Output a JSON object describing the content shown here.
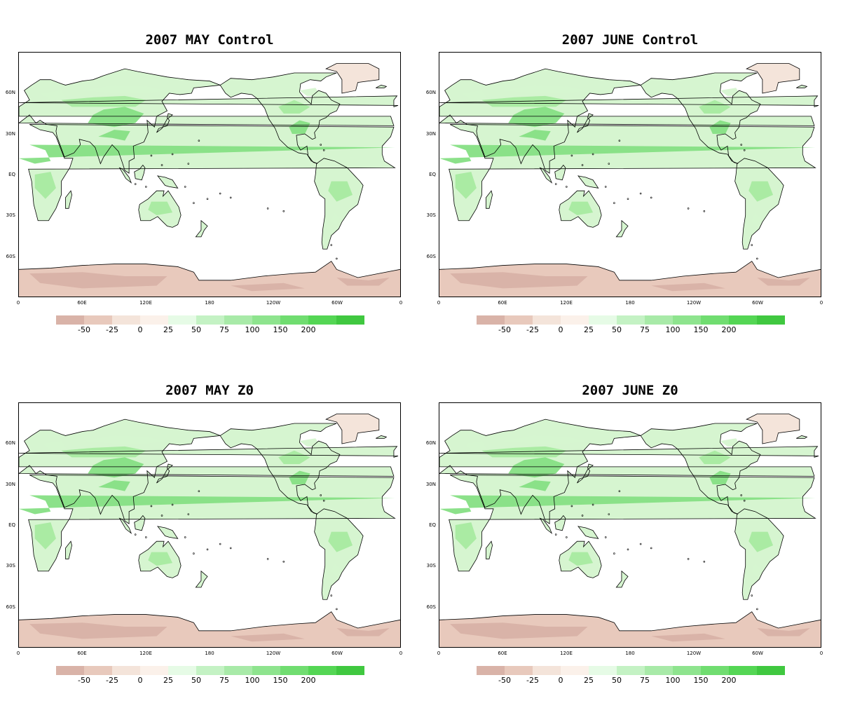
{
  "panels": [
    {
      "title": "2007 MAY Control",
      "variant": 0
    },
    {
      "title": "2007 JUNE Control",
      "variant": 1
    },
    {
      "title": "2007 MAY Z0",
      "variant": 2
    },
    {
      "title": "2007 JUNE Z0",
      "variant": 3
    }
  ],
  "lat_labels": [
    "60N",
    "30N",
    "EQ",
    "30S",
    "60S"
  ],
  "lon_labels": [
    "0",
    "60E",
    "120E",
    "180",
    "120W",
    "60W",
    "0"
  ],
  "legend": {
    "labels": [
      "-50",
      "-25",
      "0",
      "25",
      "50",
      "75",
      "100",
      "150",
      "200"
    ],
    "colors": [
      "#d9b3a8",
      "#e8c9bc",
      "#f4e4da",
      "#fbf1ea",
      "#e6fbe6",
      "#c4f2c4",
      "#a8eaa8",
      "#8ee48e",
      "#70dd70",
      "#54d654",
      "#40c840"
    ]
  },
  "colors": {
    "land_green_light": "#d6f5d0",
    "land_green_mid": "#a8eaa0",
    "land_green_dark": "#86df84",
    "land_brown": "#e8c9bc",
    "land_brown_dark": "#d9b3a8",
    "ice_light": "#f4e4da"
  }
}
